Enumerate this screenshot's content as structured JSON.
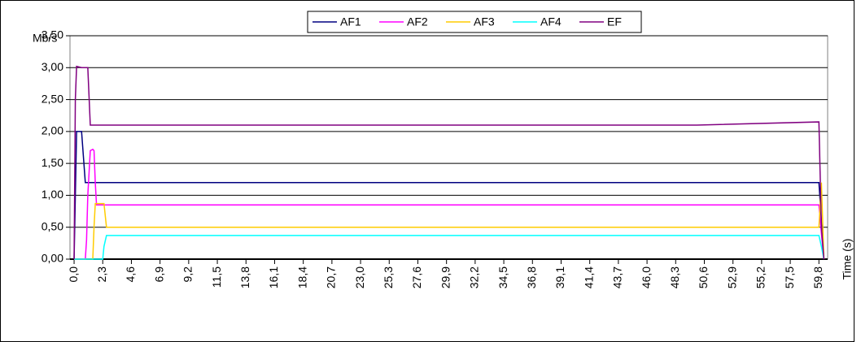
{
  "chart_data": {
    "type": "line",
    "y_label": "Mb/s",
    "x_label": "Time (s)",
    "x": [
      0,
      0.1,
      0.2,
      0.6,
      0.9,
      1.0,
      1.1,
      1.3,
      1.5,
      1.6,
      1.7,
      1.8,
      2.0,
      2.3,
      2.4,
      2.6,
      5,
      10,
      20,
      30,
      40,
      50,
      59.8,
      60.0,
      60.2
    ],
    "series": [
      {
        "name": "AF1",
        "color": "#000080",
        "values": [
          0,
          1.0,
          2.0,
          2.0,
          1.2,
          1.2,
          1.2,
          1.2,
          1.2,
          1.2,
          1.2,
          1.2,
          1.2,
          1.2,
          1.2,
          1.2,
          1.2,
          1.2,
          1.2,
          1.2,
          1.2,
          1.2,
          1.2,
          0.6,
          0
        ]
      },
      {
        "name": "AF2",
        "color": "#ff00ff",
        "values": [
          0,
          0,
          0,
          0,
          0,
          0.3,
          1.0,
          1.7,
          1.72,
          1.7,
          1.2,
          0.85,
          0.85,
          0.85,
          0.85,
          0.85,
          0.85,
          0.85,
          0.85,
          0.85,
          0.85,
          0.85,
          0.85,
          0.4,
          0
        ]
      },
      {
        "name": "AF3",
        "color": "#ffcc00",
        "values": [
          0,
          0,
          0,
          0,
          0,
          0,
          0,
          0,
          0,
          0.5,
          0.87,
          0.87,
          0.87,
          0.87,
          0.87,
          0.5,
          0.5,
          0.5,
          0.5,
          0.5,
          0.5,
          0.5,
          0.5,
          1.2,
          0
        ]
      },
      {
        "name": "AF4",
        "color": "#00ffff",
        "values": [
          0,
          0,
          0,
          0,
          0,
          0,
          0,
          0,
          0,
          0,
          0,
          0,
          0,
          0,
          0.2,
          0.37,
          0.37,
          0.37,
          0.37,
          0.37,
          0.37,
          0.37,
          0.37,
          0.2,
          0
        ]
      },
      {
        "name": "EF",
        "color": "#800080",
        "values": [
          0,
          2.5,
          3.02,
          3.0,
          3.0,
          3.0,
          3.0,
          2.1,
          2.1,
          2.1,
          2.1,
          2.1,
          2.1,
          2.1,
          2.1,
          2.1,
          2.1,
          2.1,
          2.1,
          2.1,
          2.1,
          2.1,
          2.15,
          0.5,
          0
        ]
      }
    ],
    "xlim": [
      -0.33,
      60.5
    ],
    "xticks": [
      {
        "value": 0,
        "label": "0,0"
      },
      {
        "value": 2.3,
        "label": "2,3"
      },
      {
        "value": 4.6,
        "label": "4,6"
      },
      {
        "value": 6.9,
        "label": "6,9"
      },
      {
        "value": 9.2,
        "label": "9,2"
      },
      {
        "value": 11.5,
        "label": "11,5"
      },
      {
        "value": 13.8,
        "label": "13,8"
      },
      {
        "value": 16.1,
        "label": "16,1"
      },
      {
        "value": 18.4,
        "label": "18,4"
      },
      {
        "value": 20.7,
        "label": "20,7"
      },
      {
        "value": 23.0,
        "label": "23,0"
      },
      {
        "value": 25.3,
        "label": "25,3"
      },
      {
        "value": 27.6,
        "label": "27,6"
      },
      {
        "value": 29.9,
        "label": "29,9"
      },
      {
        "value": 32.2,
        "label": "32,2"
      },
      {
        "value": 34.5,
        "label": "34,5"
      },
      {
        "value": 36.8,
        "label": "36,8"
      },
      {
        "value": 39.1,
        "label": "39,1"
      },
      {
        "value": 41.4,
        "label": "41,4"
      },
      {
        "value": 43.7,
        "label": "43,7"
      },
      {
        "value": 46.0,
        "label": "46,0"
      },
      {
        "value": 48.3,
        "label": "48,3"
      },
      {
        "value": 50.6,
        "label": "50,6"
      },
      {
        "value": 52.9,
        "label": "52,9"
      },
      {
        "value": 55.2,
        "label": "55,2"
      },
      {
        "value": 57.5,
        "label": "57,5"
      },
      {
        "value": 59.8,
        "label": "59,8"
      }
    ],
    "ylim": [
      0,
      3.5
    ],
    "yticks": [
      {
        "value": 0,
        "label": "0,00"
      },
      {
        "value": 0.5,
        "label": "0,50"
      },
      {
        "value": 1.0,
        "label": "1,00"
      },
      {
        "value": 1.5,
        "label": "1,50"
      },
      {
        "value": 2.0,
        "label": "2,00"
      },
      {
        "value": 2.5,
        "label": "2,50"
      },
      {
        "value": 3.0,
        "label": "3,00"
      },
      {
        "value": 3.5,
        "label": "3,50"
      }
    ],
    "grid": true,
    "legend": "top"
  }
}
